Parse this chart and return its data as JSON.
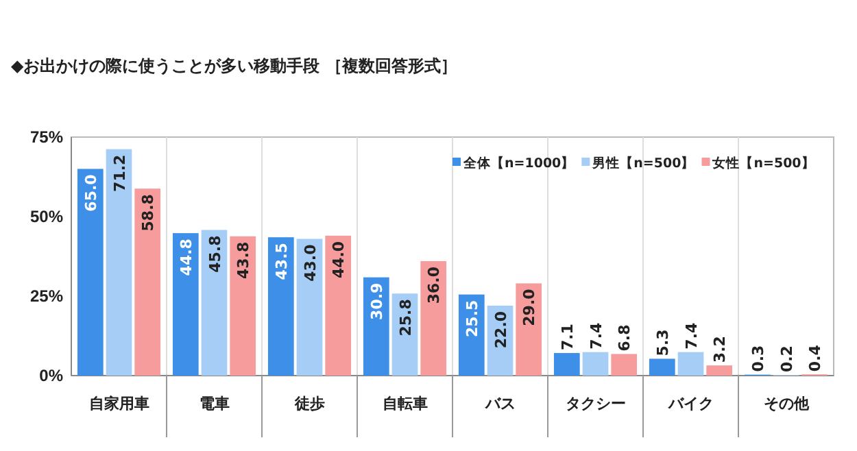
{
  "chart_data": {
    "type": "bar",
    "title": "◆お出かけの際に使うことが多い移動手段 ［複数回答形式］",
    "categories": [
      "自家用車",
      "電車",
      "徒歩",
      "自転車",
      "バス",
      "タクシー",
      "バイク",
      "その他"
    ],
    "series": [
      {
        "name": "全体【n=1000】",
        "color": "#3d8fe8",
        "values": [
          65.0,
          44.8,
          43.5,
          30.9,
          25.5,
          7.1,
          5.3,
          0.3
        ],
        "value_labels": [
          "65.0",
          "44.8",
          "43.5",
          "30.9",
          "25.5",
          "7.1",
          "5.3",
          "0.3"
        ]
      },
      {
        "name": "男性【n=500】",
        "color": "#a6cdf5",
        "values": [
          71.2,
          45.8,
          43.0,
          25.8,
          22.0,
          7.4,
          7.4,
          0.2
        ],
        "value_labels": [
          "71.2",
          "45.8",
          "43.0",
          "25.8",
          "22.0",
          "7.4",
          "7.4",
          "0.2"
        ]
      },
      {
        "name": "女性【n=500】",
        "color": "#f79c9c",
        "values": [
          58.8,
          43.8,
          44.0,
          36.0,
          29.0,
          6.8,
          3.2,
          0.4
        ],
        "value_labels": [
          "58.8",
          "43.8",
          "44.0",
          "36.0",
          "29.0",
          "6.8",
          "3.2",
          "0.4"
        ]
      }
    ],
    "ylim": [
      0,
      75
    ],
    "yticks": [
      {
        "value": 0,
        "label": "0%"
      },
      {
        "value": 25,
        "label": "25%"
      },
      {
        "value": 50,
        "label": "50%"
      },
      {
        "value": 75,
        "label": "75%"
      }
    ],
    "grid": "x",
    "legend": "top right"
  }
}
